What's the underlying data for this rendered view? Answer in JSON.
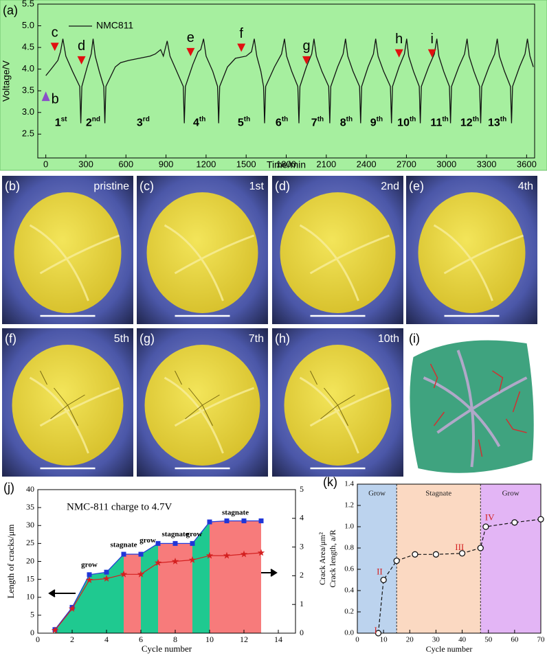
{
  "chart_data": [
    {
      "type": "line",
      "panel_label": "(a)",
      "xlabel": "Time/min",
      "ylabel": "Voltage/V",
      "xlim": [
        -60,
        3660
      ],
      "ylim": [
        1.95,
        5.5
      ],
      "xticks": [
        0,
        300,
        600,
        900,
        1200,
        1500,
        1800,
        2100,
        2400,
        2700,
        3000,
        3300,
        3600
      ],
      "yticks": [
        2.5,
        {
          "value": 3,
          "label": "3.0"
        },
        3.5,
        {
          "value": 4,
          "label": "4.0"
        },
        4.5,
        {
          "value": 5,
          "label": "5.0"
        },
        5.5
      ],
      "legend": "upper left",
      "background": "#a6ef9f",
      "series": [
        {
          "name": "NMC811",
          "color": "#111111",
          "x": [
            0,
            40,
            90,
            110,
            128,
            150,
            200,
            254,
            262,
            270,
            310,
            340,
            354,
            370,
            400,
            434,
            442,
            450,
            520,
            560,
            620,
            700,
            780,
            820,
            860,
            880,
            909,
            930,
            980,
            1029,
            1037,
            1045,
            1100,
            1140,
            1160,
            1181,
            1200,
            1250,
            1286,
            1294,
            1302,
            1360,
            1420,
            1500,
            1540,
            1561,
            1580,
            1610,
            1630,
            1638,
            1646,
            1712,
            1765,
            1787,
            1803,
            1841,
            1887,
            1895,
            1903,
            1951,
            1991,
            2008,
            2026,
            2067,
            2118,
            2126,
            2134,
            2185,
            2226,
            2244,
            2261,
            2300,
            2349,
            2357,
            2365,
            2413,
            2453,
            2470,
            2488,
            2529,
            2580,
            2588,
            2596,
            2645,
            2685,
            2702,
            2717,
            2753,
            2796,
            2804,
            2812,
            2866,
            2909,
            2928,
            2943,
            2979,
            3022,
            3030,
            3038,
            3092,
            3135,
            3154,
            3169,
            3205,
            3248,
            3256,
            3264,
            3318,
            3361,
            3380,
            3396,
            3434,
            3479,
            3487,
            3495,
            3547,
            3588,
            3606,
            3625,
            3650
          ],
          "values": [
            3.85,
            4.0,
            4.2,
            4.4,
            4.7,
            4.3,
            3.95,
            3.6,
            2.75,
            3.6,
            4.05,
            4.35,
            4.7,
            4.3,
            3.95,
            3.6,
            2.75,
            3.6,
            4.05,
            4.15,
            4.2,
            4.25,
            4.3,
            4.35,
            4.45,
            4.3,
            4.65,
            4.3,
            3.95,
            3.6,
            2.75,
            3.6,
            4.1,
            4.4,
            4.45,
            4.7,
            4.3,
            3.95,
            3.6,
            2.75,
            3.6,
            4.05,
            4.25,
            4.3,
            4.4,
            4.7,
            4.3,
            3.95,
            3.6,
            2.75,
            3.6,
            4.05,
            4.35,
            4.7,
            4.3,
            3.95,
            3.6,
            2.75,
            3.6,
            4.05,
            4.35,
            4.7,
            4.3,
            3.95,
            3.6,
            2.75,
            3.6,
            4.05,
            4.35,
            4.7,
            4.3,
            3.95,
            3.6,
            2.75,
            3.6,
            4.05,
            4.35,
            4.7,
            4.3,
            3.95,
            3.6,
            2.75,
            3.6,
            4.05,
            4.35,
            4.7,
            4.3,
            3.95,
            3.6,
            2.75,
            3.6,
            4.05,
            4.35,
            4.7,
            4.3,
            3.95,
            3.6,
            2.75,
            3.6,
            4.05,
            4.35,
            4.7,
            4.3,
            3.95,
            3.6,
            2.75,
            3.6,
            4.05,
            4.35,
            4.7,
            4.3,
            3.95,
            3.6,
            2.75,
            3.6,
            4.05,
            4.35,
            4.7,
            4.3,
            4.05
          ]
        }
      ],
      "annotations": [
        {
          "text": "b",
          "x": 0,
          "y": 3.39,
          "marker": "up",
          "color": "#8a4fc8"
        },
        {
          "text": "c",
          "x": 67,
          "y": 4.45,
          "marker": "down",
          "color": "#e01010"
        },
        {
          "text": "d",
          "x": 267,
          "y": 4.14,
          "marker": "down",
          "color": "#e01010"
        },
        {
          "text": "e",
          "x": 1084,
          "y": 4.33,
          "marker": "down",
          "color": "#e01010"
        },
        {
          "text": "f",
          "x": 1464,
          "y": 4.43,
          "marker": "down",
          "color": "#e01010"
        },
        {
          "text": "g",
          "x": 1952,
          "y": 4.14,
          "marker": "down",
          "color": "#e01010"
        },
        {
          "text": "h",
          "x": 2645,
          "y": 4.3,
          "marker": "down",
          "color": "#e01010"
        },
        {
          "text": "i",
          "x": 2892,
          "y": 4.3,
          "marker": "down",
          "color": "#e01010"
        }
      ],
      "cycle_labels": [
        {
          "number": "1",
          "suffix": "st",
          "x": 113,
          "y": 2.75
        },
        {
          "number": "2",
          "suffix": "nd",
          "x": 354,
          "y": 2.75
        },
        {
          "number": "3",
          "suffix": "rd",
          "x": 729,
          "y": 2.75
        },
        {
          "number": "4",
          "suffix": "th",
          "x": 1150,
          "y": 2.75
        },
        {
          "number": "5",
          "suffix": "th",
          "x": 1484,
          "y": 2.75
        },
        {
          "number": "6",
          "suffix": "th",
          "x": 1767,
          "y": 2.75
        },
        {
          "number": "7",
          "suffix": "th",
          "x": 2034,
          "y": 2.75
        },
        {
          "number": "8",
          "suffix": "th",
          "x": 2250,
          "y": 2.75
        },
        {
          "number": "9",
          "suffix": "th",
          "x": 2476,
          "y": 2.75
        },
        {
          "number": "10",
          "suffix": "th",
          "x": 2702,
          "y": 2.75
        },
        {
          "number": "11",
          "suffix": "th",
          "x": 2948,
          "y": 2.75
        },
        {
          "number": "12",
          "suffix": "th",
          "x": 3174,
          "y": 2.75
        },
        {
          "number": "13",
          "suffix": "th",
          "x": 3380,
          "y": 2.75
        }
      ]
    },
    {
      "type": "area",
      "panel_label": "(j)",
      "title": "NMC-811 charge to 4.7V",
      "xlabel": "Cycle number",
      "ylabel": "Length of cracks/μm",
      "xlim": [
        0,
        15
      ],
      "ylim": [
        0,
        40
      ],
      "y2lim": [
        0,
        5
      ],
      "xticks": [
        0,
        2,
        4,
        6,
        8,
        10,
        12,
        14
      ],
      "yticks": [
        0,
        5,
        10,
        15,
        20,
        25,
        30,
        35,
        40
      ],
      "y2ticks": [
        0,
        1,
        2,
        3,
        4,
        5
      ],
      "series": [
        {
          "color": "#2036d8",
          "marker": "square",
          "x": [
            1,
            2,
            3,
            4,
            5,
            6,
            7,
            8,
            9,
            10,
            11,
            12,
            13
          ],
          "values": [
            1,
            7.2,
            16.3,
            17,
            22,
            22,
            25,
            25,
            25,
            31,
            31.3,
            31.3,
            31.3
          ]
        },
        {
          "color": "#d42020",
          "marker": "star",
          "axis": "y2",
          "x": [
            1,
            2,
            3,
            4,
            5,
            6,
            7,
            8,
            9,
            10,
            11,
            12,
            13
          ],
          "values": [
            0.1,
            0.85,
            1.85,
            1.9,
            2.05,
            2.05,
            2.45,
            2.5,
            2.55,
            2.7,
            2.7,
            2.75,
            2.8
          ]
        }
      ],
      "regions": [
        {
          "from": 0,
          "to": 5,
          "color": "#1fc990"
        },
        {
          "from": 5,
          "to": 6,
          "color": "#f77b7b"
        },
        {
          "from": 6,
          "to": 7,
          "color": "#1fc990"
        },
        {
          "from": 7,
          "to": 9,
          "color": "#f77b7b"
        },
        {
          "from": 9,
          "to": 10,
          "color": "#1fc990"
        },
        {
          "from": 10,
          "to": 13,
          "color": "#f77b7b"
        }
      ],
      "annotations": [
        {
          "text": "grow",
          "x": 3,
          "y": 19
        },
        {
          "text": "stagnate",
          "x": 5,
          "y": 24.5
        },
        {
          "text": "grow",
          "x": 6.4,
          "y": 25.7
        },
        {
          "text": "stagnate",
          "x": 8,
          "y": 27.5
        },
        {
          "text": "grow",
          "x": 9.1,
          "y": 27.5
        },
        {
          "text": "stagnate",
          "x": 11.5,
          "y": 33.5
        }
      ]
    },
    {
      "type": "line",
      "panel_label": "(k)",
      "xlabel": "Cycle number",
      "ylabel": [
        "Crack Area/μm²",
        "Crack length, a/R"
      ],
      "xlim": [
        0,
        70
      ],
      "ylim": [
        0,
        1.4
      ],
      "xticks": [
        0,
        10,
        20,
        30,
        40,
        50,
        60,
        70
      ],
      "yticks": [
        {
          "value": 0,
          "label": "0.0"
        },
        0.2,
        0.4,
        0.6,
        0.8,
        {
          "value": 1,
          "label": "1.0"
        },
        1.2,
        1.4
      ],
      "series": [
        {
          "color": "#111111",
          "marker": "circle",
          "dashed": true,
          "x": [
            8,
            10,
            15,
            22,
            30,
            40,
            47,
            49,
            60,
            70
          ],
          "values": [
            0,
            0.5,
            0.68,
            0.74,
            0.74,
            0.75,
            0.8,
            1.0,
            1.04,
            1.07
          ]
        }
      ],
      "regions": [
        {
          "from": 0,
          "to": 15,
          "color": "#bcd3ee",
          "label": "Grow"
        },
        {
          "from": 15,
          "to": 47,
          "color": "#fbd9c2",
          "label": "Stagnate"
        },
        {
          "from": 47,
          "to": 70,
          "color": "#e3b5f5",
          "label": "Grow"
        }
      ],
      "annotations": [
        {
          "text": "I",
          "x": 7,
          "y": 0.02,
          "color": "#d42020"
        },
        {
          "text": "II",
          "x": 8.5,
          "y": 0.57,
          "color": "#d42020"
        },
        {
          "text": "III",
          "x": 39,
          "y": 0.8,
          "color": "#d42020"
        },
        {
          "text": "IV",
          "x": 50.5,
          "y": 1.08,
          "color": "#d42020"
        }
      ]
    }
  ],
  "images": [
    {
      "label": "(b)",
      "caption": "pristine"
    },
    {
      "label": "(c)",
      "caption": "1st"
    },
    {
      "label": "(d)",
      "caption": "2nd"
    },
    {
      "label": "(e)",
      "caption": "4th"
    },
    {
      "label": "(f)",
      "caption": "5th"
    },
    {
      "label": "(g)",
      "caption": "7th"
    },
    {
      "label": "(h)",
      "caption": "10th"
    },
    {
      "label": "(i)"
    }
  ]
}
